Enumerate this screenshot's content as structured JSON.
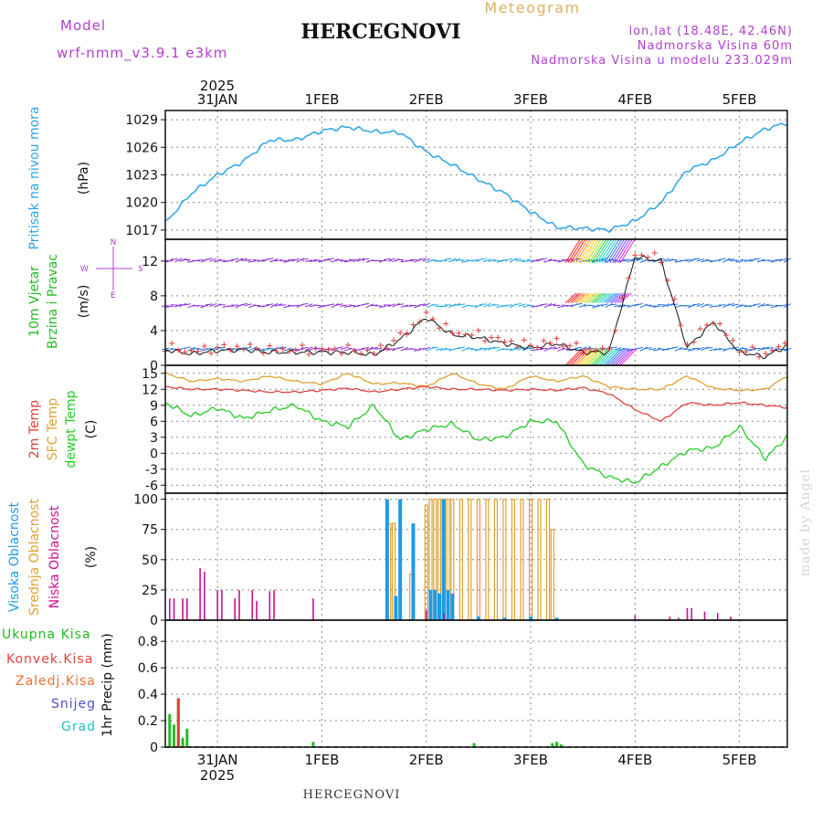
{
  "header": {
    "title": "HERCEGNOVI",
    "meteogram": "Meteogram",
    "model_label": "Model",
    "model_name": "wrf-nmm_v3.9.1 e3km",
    "lonlat": "lon,lat (18.48E, 42.46N)",
    "elevation": "Nadmorska Visina 60m",
    "model_elevation": "Nadmorska Visina u modelu 233.029m",
    "footer": "HERCEGNOVI",
    "watermark": "made by Angel"
  },
  "colors": {
    "pressure": "#2aa4e8",
    "wind_title": "#22bb22",
    "temp2m": "#e04040",
    "sfc": "#e0a030",
    "dew": "#22cc22",
    "high_cloud": "#1e9be8",
    "mid_cloud": "#e0a030",
    "low_cloud": "#cc1090",
    "purple": "#b040d0",
    "grad": "#20c0c0",
    "snow": "#5050d0"
  },
  "chart_data": [
    {
      "type": "line",
      "panel": "pressure",
      "ylabel_side": "Pritisak na nivou mora",
      "ylabel": "(hPa)",
      "yticks": [
        "1017",
        "1020",
        "1023",
        "1026",
        "1029"
      ],
      "ylim": [
        1016,
        1030
      ],
      "x_hours": [
        0,
        6,
        12,
        18,
        24,
        30,
        36,
        42,
        48,
        54,
        60,
        66,
        72,
        78,
        84,
        90,
        96,
        102,
        108,
        114,
        120,
        126,
        132,
        138,
        144
      ],
      "values": [
        1017.8,
        1021.0,
        1023.0,
        1024.5,
        1026.8,
        1026.8,
        1027.8,
        1028.2,
        1027.7,
        1027.6,
        1025.5,
        1024.1,
        1022.5,
        1021.0,
        1019.0,
        1017.3,
        1017.2,
        1017.0,
        1018.0,
        1020.0,
        1023.5,
        1024.6,
        1026.5,
        1028.0,
        1028.8
      ]
    },
    {
      "type": "line",
      "panel": "wind",
      "ylabel_side": [
        "10m Vjetar",
        "Brzina i Pravac"
      ],
      "ylabel": "(m/s)",
      "compass": [
        "N",
        "W",
        "E",
        "S"
      ],
      "yticks": [
        "0",
        "4",
        "8",
        "12"
      ],
      "ylim": [
        0,
        14.5
      ],
      "barb_levels": [
        1.8,
        6.8,
        12.0
      ],
      "x_hours": [
        0,
        6,
        12,
        18,
        24,
        30,
        36,
        42,
        48,
        54,
        60,
        66,
        72,
        78,
        84,
        90,
        96,
        102,
        108,
        114,
        120,
        126,
        132,
        138,
        144
      ],
      "values": [
        1.8,
        1.3,
        1.7,
        1.8,
        1.5,
        1.5,
        1.5,
        1.5,
        1.2,
        3.0,
        5.5,
        3.5,
        3.2,
        2.5,
        2.0,
        2.5,
        1.5,
        1.5,
        12.5,
        12.0,
        2.0,
        5.0,
        1.5,
        1.0,
        2.5
      ]
    },
    {
      "type": "line",
      "panel": "temperature",
      "ylabel_side": [
        "2m Temp",
        "SFC Temp",
        "dewpt Temp"
      ],
      "ylabel": "(C)",
      "yticks": [
        "-6",
        "-3",
        "0",
        "3",
        "6",
        "9",
        "12",
        "15"
      ],
      "ylim": [
        -7.5,
        16.5
      ],
      "x_hours": [
        0,
        6,
        12,
        18,
        24,
        30,
        36,
        42,
        48,
        54,
        60,
        66,
        72,
        78,
        84,
        90,
        96,
        102,
        108,
        114,
        120,
        126,
        132,
        138,
        144
      ],
      "series": [
        {
          "name": "SFC Temp",
          "values": [
            15.0,
            13.5,
            14.0,
            13.5,
            14.5,
            13.5,
            13.0,
            15.0,
            13.0,
            13.2,
            12.5,
            15.0,
            13.0,
            12.0,
            14.5,
            13.5,
            14.5,
            12.5,
            12.0,
            12.0,
            14.5,
            12.2,
            11.8,
            12.0,
            15.0
          ]
        },
        {
          "name": "2m Temp",
          "values": [
            12.5,
            12.0,
            12.0,
            11.8,
            11.5,
            11.5,
            11.8,
            12.2,
            11.5,
            12.0,
            12.5,
            12.0,
            12.0,
            11.8,
            12.0,
            11.8,
            12.3,
            11.2,
            8.2,
            6.0,
            9.5,
            9.0,
            9.5,
            9.0,
            8.5
          ]
        },
        {
          "name": "dewpt Temp",
          "values": [
            9.5,
            7.0,
            8.5,
            6.5,
            8.0,
            9.0,
            6.0,
            5.0,
            9.0,
            2.5,
            4.5,
            5.5,
            2.5,
            3.0,
            6.0,
            6.0,
            -2.0,
            -4.5,
            -5.5,
            -2.5,
            0.5,
            1.0,
            5.0,
            -1.0,
            4.0
          ]
        }
      ]
    },
    {
      "type": "bar",
      "panel": "clouds",
      "ylabel_side": [
        "Visoka Oblacnost",
        "Srednja Oblacnost",
        "Niska Oblacnost"
      ],
      "ylabel": "(%)",
      "yticks": [
        "0",
        "25",
        "50",
        "75",
        "100"
      ],
      "ylim": [
        0,
        105
      ],
      "high": [
        [
          51,
          100
        ],
        [
          53,
          20
        ],
        [
          54,
          100
        ],
        [
          57,
          80
        ],
        [
          61,
          25
        ],
        [
          62,
          25
        ],
        [
          63,
          22
        ],
        [
          64,
          100
        ],
        [
          65,
          25
        ],
        [
          66,
          22
        ],
        [
          72,
          3
        ],
        [
          78,
          2
        ],
        [
          84,
          3
        ],
        [
          90,
          2
        ]
      ],
      "mid": [
        [
          51.5,
          80
        ],
        [
          52.5,
          80
        ],
        [
          56.5,
          38
        ],
        [
          60,
          95
        ],
        [
          61,
          100
        ],
        [
          62,
          100
        ],
        [
          63,
          100
        ],
        [
          64,
          100
        ],
        [
          65,
          100
        ],
        [
          66,
          100
        ],
        [
          68,
          100
        ],
        [
          70,
          100
        ],
        [
          72,
          100
        ],
        [
          74,
          100
        ],
        [
          76,
          100
        ],
        [
          78,
          100
        ],
        [
          80,
          100
        ],
        [
          82,
          100
        ],
        [
          84,
          100
        ],
        [
          86,
          100
        ],
        [
          88,
          100
        ],
        [
          89,
          75
        ]
      ],
      "low": [
        [
          1,
          18
        ],
        [
          2,
          18
        ],
        [
          4,
          18
        ],
        [
          5,
          18
        ],
        [
          8,
          43
        ],
        [
          9,
          40
        ],
        [
          12,
          25
        ],
        [
          13,
          25
        ],
        [
          16,
          18
        ],
        [
          17,
          25
        ],
        [
          20,
          25
        ],
        [
          21,
          16
        ],
        [
          24,
          24
        ],
        [
          25,
          25
        ],
        [
          34,
          18
        ],
        [
          60,
          8
        ],
        [
          64,
          6
        ],
        [
          108,
          4
        ],
        [
          116,
          3
        ],
        [
          118,
          2
        ],
        [
          120,
          10
        ],
        [
          121,
          10
        ],
        [
          124,
          7
        ],
        [
          127,
          6
        ],
        [
          130,
          3
        ]
      ]
    },
    {
      "type": "bar",
      "panel": "precip",
      "legend": [
        "Ukupna Kisa",
        "Konvek.Kisa",
        "Zaledj.Kisa",
        "Snijeg",
        "Grad"
      ],
      "ylabel": "1hr Precip (mm)",
      "yticks": [
        "0",
        "0.2",
        "0.4",
        "0.6",
        "0.8"
      ],
      "ylim": [
        0,
        0.96
      ],
      "total": [
        [
          1,
          0.25
        ],
        [
          2,
          0.17
        ],
        [
          3,
          0.37
        ],
        [
          4,
          0.07
        ],
        [
          5,
          0.14
        ],
        [
          34,
          0.04
        ],
        [
          71,
          0.03
        ],
        [
          89,
          0.03
        ],
        [
          90,
          0.04
        ],
        [
          91,
          0.02
        ]
      ],
      "convective": [
        [
          3,
          0.37
        ]
      ]
    }
  ],
  "xaxis": {
    "top_year": "2025",
    "bottom_year": "2025",
    "day_labels": [
      "31JAN",
      "1FEB",
      "2FEB",
      "3FEB",
      "4FEB",
      "5FEB"
    ],
    "day_hours": [
      12,
      36,
      60,
      84,
      108,
      132
    ]
  }
}
